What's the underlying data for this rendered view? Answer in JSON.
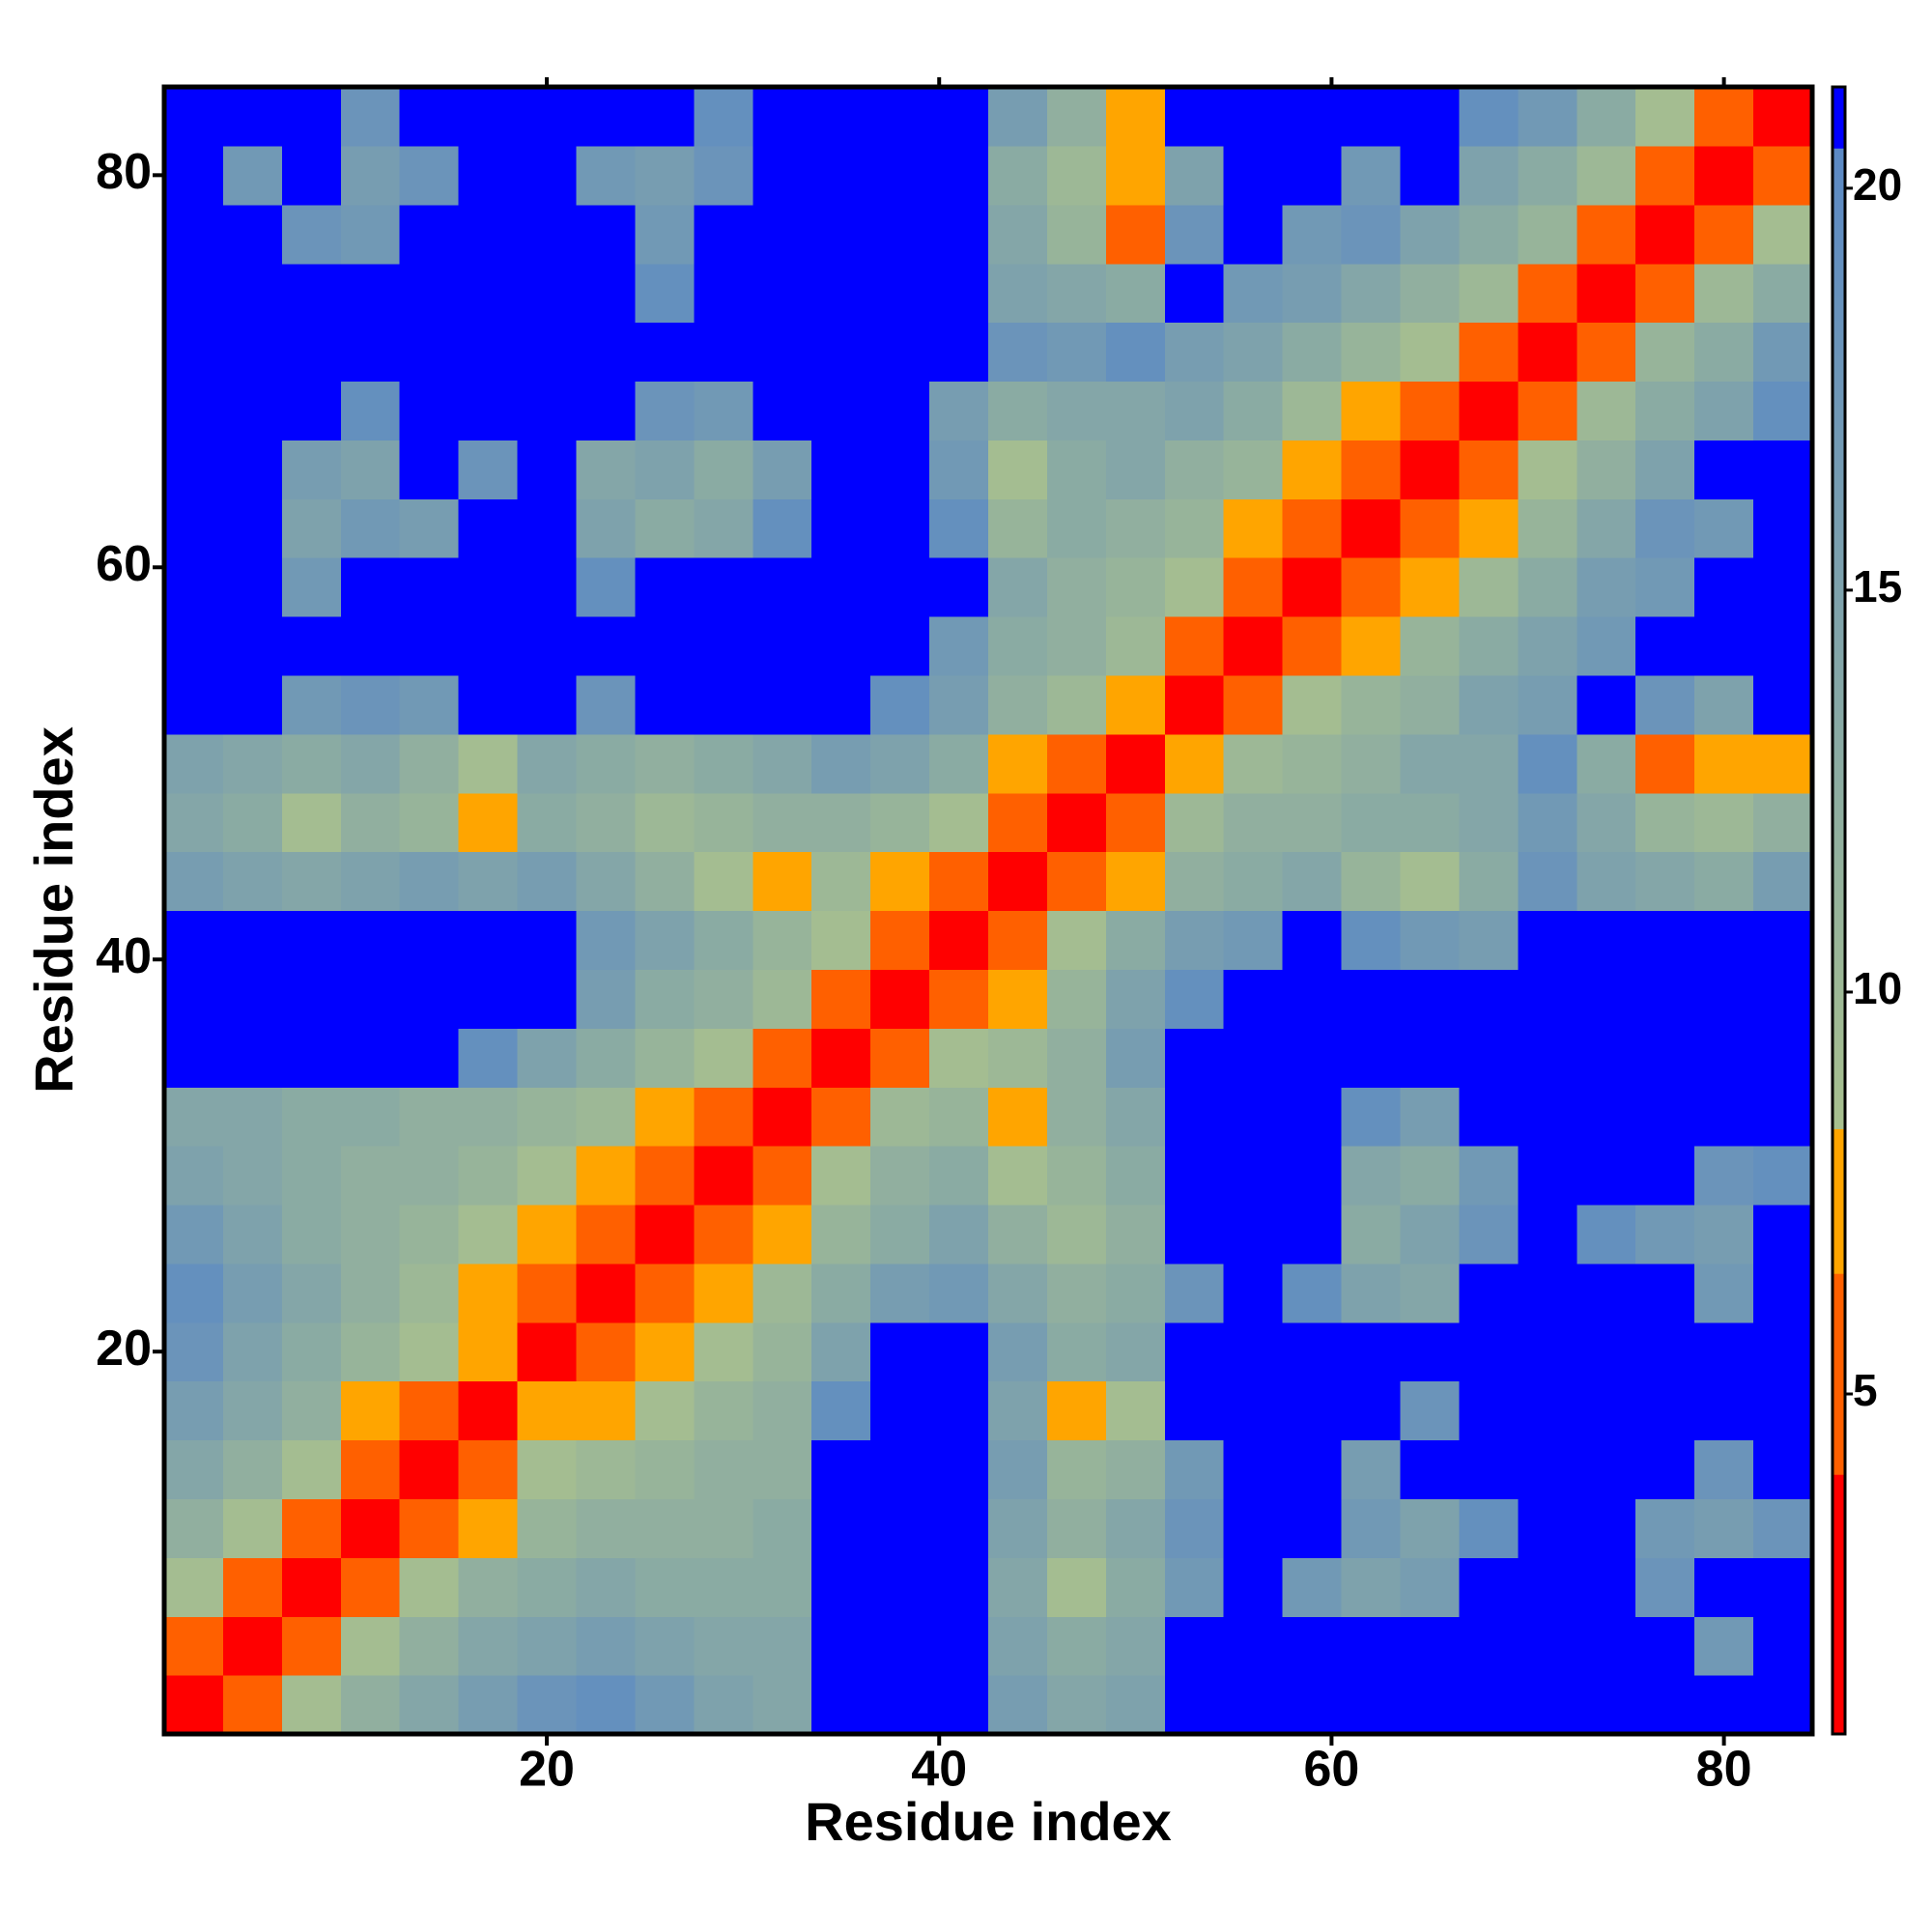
{
  "chart_data": {
    "type": "heatmap",
    "x_label": "Residue index",
    "y_label": "Residue index",
    "x": [
      2,
      5,
      8,
      11,
      14,
      17,
      20,
      23,
      26,
      29,
      32,
      35,
      38,
      41,
      44,
      47,
      50,
      53,
      56,
      59,
      62,
      65,
      68,
      71,
      74,
      77,
      80,
      83
    ],
    "y": [
      2,
      5,
      8,
      11,
      14,
      17,
      20,
      23,
      26,
      29,
      32,
      35,
      38,
      41,
      44,
      47,
      50,
      53,
      56,
      59,
      62,
      65,
      68,
      71,
      74,
      77,
      80,
      83
    ],
    "xlim": [
      0.5,
      84.5
    ],
    "ylim": [
      0.5,
      84.5
    ],
    "xticks": [
      20,
      40,
      60,
      80
    ],
    "yticks": [
      20,
      40,
      60,
      80
    ],
    "zlim": [
      0.77,
      21.26
    ],
    "zticks": [
      5,
      10,
      15,
      20
    ],
    "colorscale": [
      [
        0.77,
        "#ff0000"
      ],
      [
        4,
        "#ff0000"
      ],
      [
        4,
        "#ff6000"
      ],
      [
        6.5,
        "#ff6000"
      ],
      [
        6.5,
        "#ffa500"
      ],
      [
        8.3,
        "#ffa500"
      ],
      [
        8.3,
        "#a8c08e"
      ],
      [
        20.5,
        "#5b89c5"
      ],
      [
        20.5,
        "#0000ff"
      ],
      [
        21.26,
        "#0000ff"
      ]
    ],
    "z": [
      [
        2,
        6,
        9,
        12,
        14,
        16,
        18,
        19,
        17,
        15,
        14,
        21,
        21,
        21,
        16,
        14,
        15,
        21,
        21,
        21,
        21,
        21,
        21,
        21,
        21,
        21,
        21,
        21
      ],
      [
        6,
        2,
        6,
        9,
        12,
        14,
        15,
        16,
        15,
        14,
        14,
        21,
        21,
        21,
        15,
        13,
        14,
        21,
        21,
        21,
        21,
        21,
        21,
        21,
        21,
        21,
        17,
        21
      ],
      [
        9,
        6,
        2,
        6,
        9,
        12,
        13,
        14,
        13,
        13,
        13,
        21,
        21,
        21,
        14,
        9,
        13,
        17,
        21,
        17,
        15,
        16,
        21,
        21,
        21,
        18,
        21,
        21
      ],
      [
        12,
        9,
        6,
        2,
        6,
        8,
        11,
        12,
        12,
        12,
        13,
        21,
        21,
        21,
        15,
        12,
        14,
        18,
        21,
        21,
        17,
        15,
        19,
        21,
        21,
        17,
        16,
        18
      ],
      [
        14,
        12,
        9,
        6,
        2,
        6,
        9,
        10,
        11,
        12,
        12,
        21,
        21,
        21,
        16,
        11,
        12,
        17,
        21,
        21,
        16,
        21,
        21,
        21,
        21,
        21,
        18,
        21
      ],
      [
        16,
        14,
        12,
        8,
        6,
        2,
        7,
        8,
        9,
        11,
        12,
        19,
        21,
        21,
        15,
        8,
        9,
        21,
        21,
        21,
        21,
        18,
        21,
        21,
        21,
        21,
        21,
        21
      ],
      [
        18,
        15,
        13,
        11,
        9,
        7,
        2,
        5,
        7,
        9,
        11,
        15,
        21,
        21,
        16,
        13,
        14,
        21,
        21,
        21,
        21,
        21,
        21,
        21,
        21,
        21,
        21,
        21
      ],
      [
        19,
        16,
        14,
        12,
        10,
        8,
        5,
        2,
        5,
        8,
        10,
        13,
        16,
        17,
        14,
        12,
        13,
        18,
        21,
        19,
        15,
        14,
        21,
        21,
        21,
        21,
        17,
        21
      ],
      [
        17,
        15,
        13,
        12,
        11,
        9,
        7,
        5,
        2,
        6,
        8,
        11,
        13,
        15,
        12,
        10,
        12,
        21,
        21,
        21,
        13,
        15,
        18,
        21,
        19,
        17,
        16,
        21
      ],
      [
        15,
        14,
        13,
        12,
        12,
        11,
        9,
        8,
        6,
        2,
        5,
        9,
        12,
        13,
        9,
        11,
        13,
        21,
        21,
        21,
        14,
        13,
        17,
        21,
        21,
        21,
        18,
        19
      ],
      [
        14,
        14,
        13,
        13,
        12,
        12,
        11,
        10,
        8,
        5,
        2,
        6,
        10,
        11,
        8,
        12,
        14,
        21,
        21,
        21,
        19,
        16,
        21,
        21,
        21,
        21,
        21,
        21
      ],
      [
        21,
        21,
        21,
        21,
        21,
        19,
        15,
        13,
        11,
        9,
        6,
        2,
        6,
        9,
        10,
        12,
        16,
        21,
        21,
        21,
        21,
        21,
        21,
        21,
        21,
        21,
        21,
        21
      ],
      [
        21,
        21,
        21,
        21,
        21,
        21,
        21,
        16,
        13,
        12,
        10,
        6,
        2,
        5,
        8,
        11,
        15,
        19,
        21,
        21,
        21,
        21,
        21,
        21,
        21,
        21,
        21,
        21
      ],
      [
        21,
        21,
        21,
        21,
        21,
        21,
        21,
        17,
        15,
        13,
        11,
        9,
        5,
        2,
        6,
        9,
        13,
        16,
        17,
        21,
        19,
        17,
        16,
        21,
        21,
        21,
        21,
        21
      ],
      [
        16,
        15,
        14,
        15,
        16,
        15,
        16,
        14,
        12,
        9,
        8,
        10,
        8,
        6,
        2,
        6,
        7,
        12,
        13,
        14,
        11,
        9,
        13,
        18,
        15,
        14,
        13,
        16
      ],
      [
        14,
        13,
        9,
        12,
        11,
        8,
        13,
        12,
        10,
        11,
        12,
        12,
        11,
        9,
        6,
        2,
        6,
        10,
        12,
        12,
        13,
        13,
        14,
        17,
        14,
        11,
        10,
        12
      ],
      [
        15,
        14,
        13,
        14,
        12,
        9,
        14,
        13,
        12,
        13,
        14,
        16,
        15,
        13,
        7,
        6,
        2,
        8,
        10,
        11,
        12,
        14,
        14,
        19,
        13,
        6,
        7,
        8
      ],
      [
        21,
        21,
        17,
        18,
        17,
        21,
        21,
        18,
        21,
        21,
        21,
        21,
        19,
        16,
        12,
        10,
        8,
        2,
        6,
        9,
        11,
        12,
        15,
        16,
        21,
        18,
        15,
        21
      ],
      [
        21,
        21,
        21,
        21,
        21,
        21,
        21,
        21,
        21,
        21,
        21,
        21,
        21,
        17,
        13,
        12,
        10,
        6,
        2,
        6,
        8,
        11,
        13,
        15,
        17,
        21,
        21,
        21
      ],
      [
        21,
        21,
        17,
        21,
        21,
        21,
        21,
        19,
        21,
        21,
        21,
        21,
        21,
        21,
        14,
        12,
        11,
        9,
        6,
        2,
        6,
        8,
        10,
        13,
        16,
        17,
        21,
        21
      ],
      [
        21,
        21,
        15,
        17,
        16,
        21,
        21,
        15,
        13,
        14,
        19,
        21,
        21,
        19,
        11,
        13,
        12,
        11,
        8,
        6,
        2,
        6,
        8,
        11,
        14,
        18,
        17,
        21
      ],
      [
        21,
        21,
        16,
        15,
        21,
        18,
        21,
        14,
        15,
        13,
        16,
        21,
        21,
        17,
        9,
        13,
        14,
        12,
        11,
        8,
        6,
        2,
        6,
        9,
        12,
        15,
        21,
        21
      ],
      [
        21,
        21,
        21,
        19,
        21,
        21,
        21,
        21,
        18,
        17,
        21,
        21,
        21,
        16,
        13,
        14,
        14,
        15,
        13,
        10,
        8,
        6,
        2,
        6,
        10,
        13,
        15,
        19
      ],
      [
        21,
        21,
        21,
        21,
        21,
        21,
        21,
        21,
        21,
        21,
        21,
        21,
        21,
        21,
        18,
        17,
        19,
        16,
        15,
        13,
        11,
        9,
        6,
        2,
        6,
        11,
        13,
        17
      ],
      [
        21,
        21,
        21,
        21,
        21,
        21,
        21,
        21,
        19,
        21,
        21,
        21,
        21,
        21,
        15,
        14,
        13,
        21,
        17,
        16,
        14,
        12,
        10,
        6,
        2,
        6,
        10,
        13
      ],
      [
        21,
        21,
        18,
        17,
        21,
        21,
        21,
        21,
        17,
        21,
        21,
        21,
        21,
        21,
        14,
        11,
        6,
        18,
        21,
        17,
        18,
        15,
        13,
        11,
        6,
        2,
        6,
        9
      ],
      [
        21,
        17,
        21,
        16,
        18,
        21,
        21,
        17,
        16,
        18,
        21,
        21,
        21,
        21,
        13,
        10,
        7,
        15,
        21,
        21,
        17,
        21,
        15,
        13,
        10,
        6,
        2,
        6
      ],
      [
        21,
        21,
        21,
        18,
        21,
        21,
        21,
        21,
        21,
        19,
        21,
        21,
        21,
        21,
        16,
        12,
        8,
        21,
        21,
        21,
        21,
        21,
        19,
        17,
        13,
        9,
        6,
        2
      ]
    ]
  }
}
